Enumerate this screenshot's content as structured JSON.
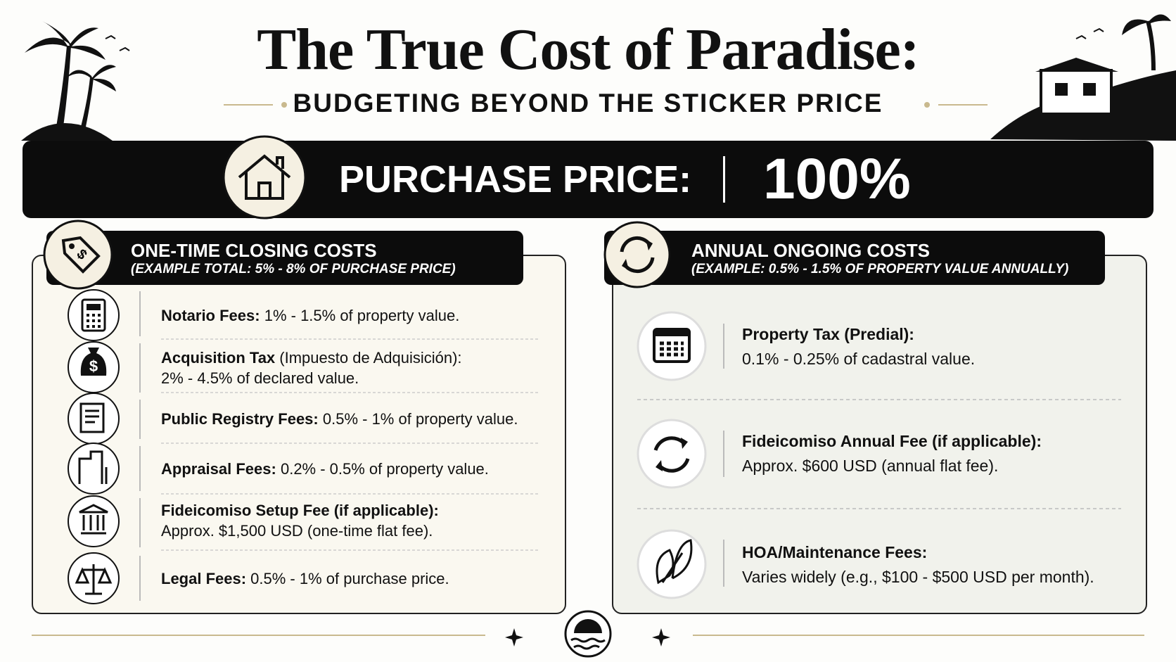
{
  "header": {
    "title": "The True Cost of Paradise:",
    "subtitle": "BUDGETING BEYOND THE STICKER PRICE"
  },
  "banner": {
    "label": "PURCHASE PRICE:",
    "value": "100%"
  },
  "left": {
    "title": "ONE-TIME CLOSING COSTS",
    "subtitle": "(EXAMPLE TOTAL: 5% - 8% OF PURCHASE PRICE)",
    "items": [
      {
        "label": "Notario Fees:",
        "text": "1% - 1.5% of property value."
      },
      {
        "label": "Acquisition Tax",
        "text": "(Impuesto de Adquisición):",
        "text2": "2% - 4.5% of declared value."
      },
      {
        "label": "Public Registry Fees:",
        "text": "0.5% - 1% of property value."
      },
      {
        "label": "Appraisal Fees:",
        "text": "0.2% - 0.5% of property value."
      },
      {
        "label": "Fideicomiso Setup Fee (if applicable):",
        "text": "Approx. $1,500 USD (one-time flat fee)."
      },
      {
        "label": "Legal Fees:",
        "text": "0.5% - 1% of purchase price."
      }
    ]
  },
  "right": {
    "title": "ANNUAL ONGOING COSTS",
    "subtitle": "(EXAMPLE: 0.5% - 1.5% OF PROPERTY VALUE ANNUALLY)",
    "items": [
      {
        "label": "Property Tax (Predial):",
        "text": "0.1% - 0.25% of cadastral value."
      },
      {
        "label": "Fideicomiso Annual Fee (if applicable):",
        "text": "Approx. $600 USD (annual flat fee)."
      },
      {
        "label": "HOA/Maintenance Fees:",
        "text": "Varies widely (e.g., $100 - $500 USD per month)."
      }
    ]
  }
}
